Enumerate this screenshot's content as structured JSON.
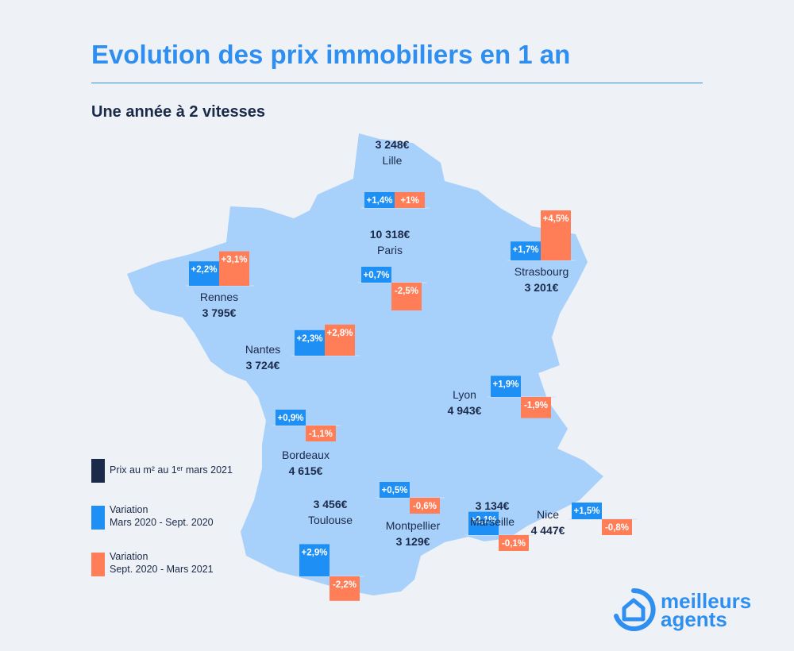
{
  "header": {
    "title": "Evolution des prix immobiliers en 1 an",
    "subtitle": "Une année à 2 vitesses"
  },
  "colors": {
    "accent": "#2f8ff0",
    "dark": "#1b2a49",
    "variation_1": "#1e8ff5",
    "variation_2": "#ff7e57",
    "land": "#a7d0fb"
  },
  "cities": [
    {
      "name": "Lille",
      "price": "3 248€",
      "var1": "+1,4%",
      "var2": "+1%",
      "v1": 1.4,
      "v2": 1.0
    },
    {
      "name": "Paris",
      "price": "10 318€",
      "var1": "+0,7%",
      "var2": "-2,5%",
      "v1": 0.7,
      "v2": -2.5
    },
    {
      "name": "Strasbourg",
      "price": "3 201€",
      "var1": "+1,7%",
      "var2": "+4,5%",
      "v1": 1.7,
      "v2": 4.5
    },
    {
      "name": "Rennes",
      "price": "3 795€",
      "var1": "+2,2%",
      "var2": "+3,1%",
      "v1": 2.2,
      "v2": 3.1
    },
    {
      "name": "Nantes",
      "price": "3 724€",
      "var1": "+2,3%",
      "var2": "+2,8%",
      "v1": 2.3,
      "v2": 2.8
    },
    {
      "name": "Bordeaux",
      "price": "4 615€",
      "var1": "+0,9%",
      "var2": "-1,1%",
      "v1": 0.9,
      "v2": -1.1
    },
    {
      "name": "Lyon",
      "price": "4 943€",
      "var1": "+1,9%",
      "var2": "-1,9%",
      "v1": 1.9,
      "v2": -1.9
    },
    {
      "name": "Toulouse",
      "price": "3 456€",
      "var1": "+2,9%",
      "var2": "-2,2%",
      "v1": 2.9,
      "v2": -2.2
    },
    {
      "name": "Montpellier",
      "price": "3 129€",
      "var1": "+0,5%",
      "var2": "-0,6%",
      "v1": 0.5,
      "v2": -0.6
    },
    {
      "name": "Marseille",
      "price": "3 134€",
      "var1": "+2,1%",
      "var2": "-0,1%",
      "v1": 2.1,
      "v2": -0.1
    },
    {
      "name": "Nice",
      "price": "4 447€",
      "var1": "+1,5%",
      "var2": "-0,8%",
      "v1": 1.5,
      "v2": -0.8
    }
  ],
  "legend": {
    "price": "Prix au m² au 1ᵉʳ mars 2021",
    "var1_line1": "Variation",
    "var1_line2": "Mars 2020 - Sept. 2020",
    "var2_line1": "Variation",
    "var2_line2": "Sept. 2020 - Mars 2021",
    "price_color": "#1b2a49"
  },
  "logo": {
    "line1": "meilleurs",
    "line2": "agents"
  }
}
